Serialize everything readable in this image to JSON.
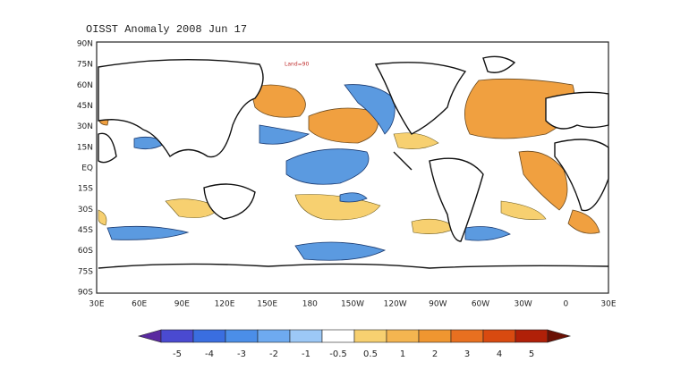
{
  "title": "OISST Anomaly  2008 Jun 17",
  "note": "Land=90",
  "map": {
    "lat_labels": [
      "90N",
      "75N",
      "60N",
      "45N",
      "30N",
      "15N",
      "EQ",
      "15S",
      "30S",
      "45S",
      "60S",
      "75S",
      "90S"
    ],
    "lon_labels": [
      "30E",
      "60E",
      "90E",
      "120E",
      "150E",
      "180",
      "150W",
      "120W",
      "90W",
      "60W",
      "30W",
      "0",
      "30E"
    ]
  },
  "colorbar": {
    "labels": [
      "-5",
      "-4",
      "-3",
      "-2",
      "-1",
      "-0.5",
      "0.5",
      "1",
      "2",
      "3",
      "4",
      "5"
    ]
  }
}
